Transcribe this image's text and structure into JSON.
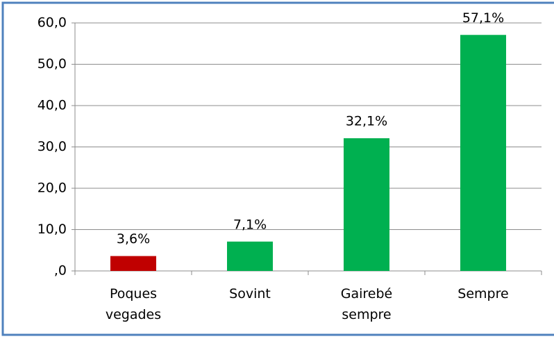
{
  "chart_data": {
    "type": "bar",
    "categories": [
      "Poques vegades",
      "Sovint",
      "Gairebé sempre",
      "Sempre"
    ],
    "values": [
      3.6,
      7.1,
      32.1,
      57.1
    ],
    "value_labels": [
      "3,6%",
      "7,1%",
      "32,1%",
      "57,1%"
    ],
    "colors": [
      "#c00000",
      "#00b050",
      "#00b050",
      "#00b050"
    ],
    "ylim": [
      0,
      60
    ],
    "yticks": [
      {
        "value": 0,
        "label": ",0"
      },
      {
        "value": 10,
        "label": "10,0"
      },
      {
        "value": 20,
        "label": "20,0"
      },
      {
        "value": 30,
        "label": "30,0"
      },
      {
        "value": 40,
        "label": "40,0"
      },
      {
        "value": 50,
        "label": "50,0"
      },
      {
        "value": 60,
        "label": "60,0"
      }
    ],
    "grid": true
  }
}
